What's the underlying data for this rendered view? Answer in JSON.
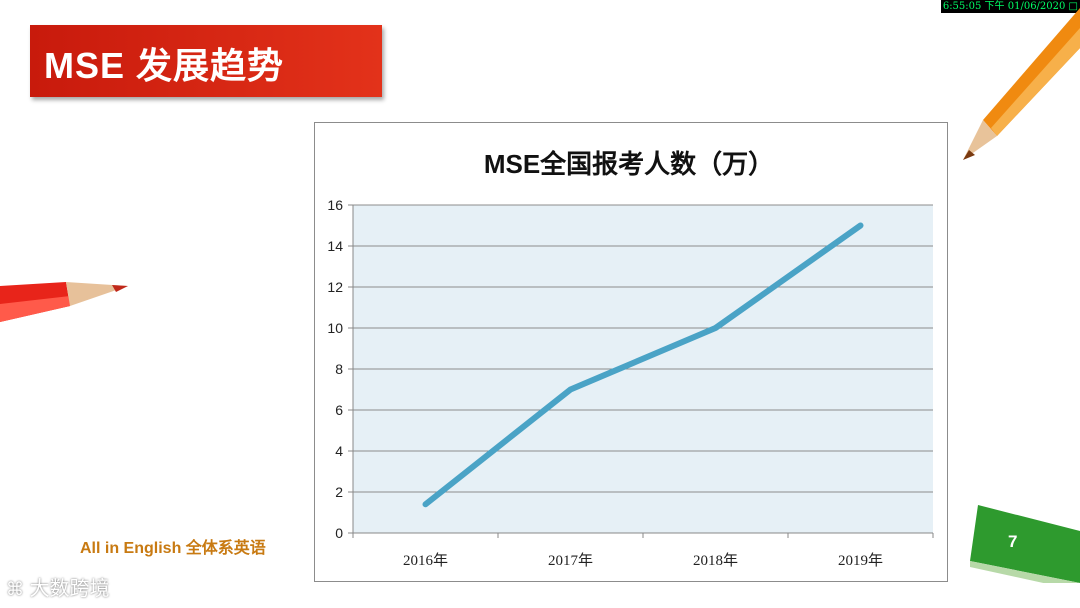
{
  "slide": {
    "title": "MSE 发展趋势",
    "timestamp": "6:55:05 下午 01/06/2020 □",
    "footer": "All in English 全体系英语",
    "page_number": "7",
    "watermark": "大数跨境"
  },
  "colors": {
    "title_banner": "#d42414",
    "line": "#4aa3c6",
    "plot_bg": "#e6f0f6",
    "footer_text": "#c87a12",
    "page_tab": "#2e9a2e"
  },
  "chart_data": {
    "type": "line",
    "title": "MSE全国报考人数（万）",
    "categories": [
      "2016年",
      "2017年",
      "2018年",
      "2019年"
    ],
    "series": [
      {
        "values": [
          1.4,
          7.0,
          10.0,
          15.0
        ]
      }
    ],
    "ylim": [
      0,
      16
    ],
    "yticks": [
      "0",
      "2",
      "4",
      "6",
      "8",
      "10",
      "12",
      "14",
      "16"
    ],
    "grid": true,
    "legend": "none"
  }
}
